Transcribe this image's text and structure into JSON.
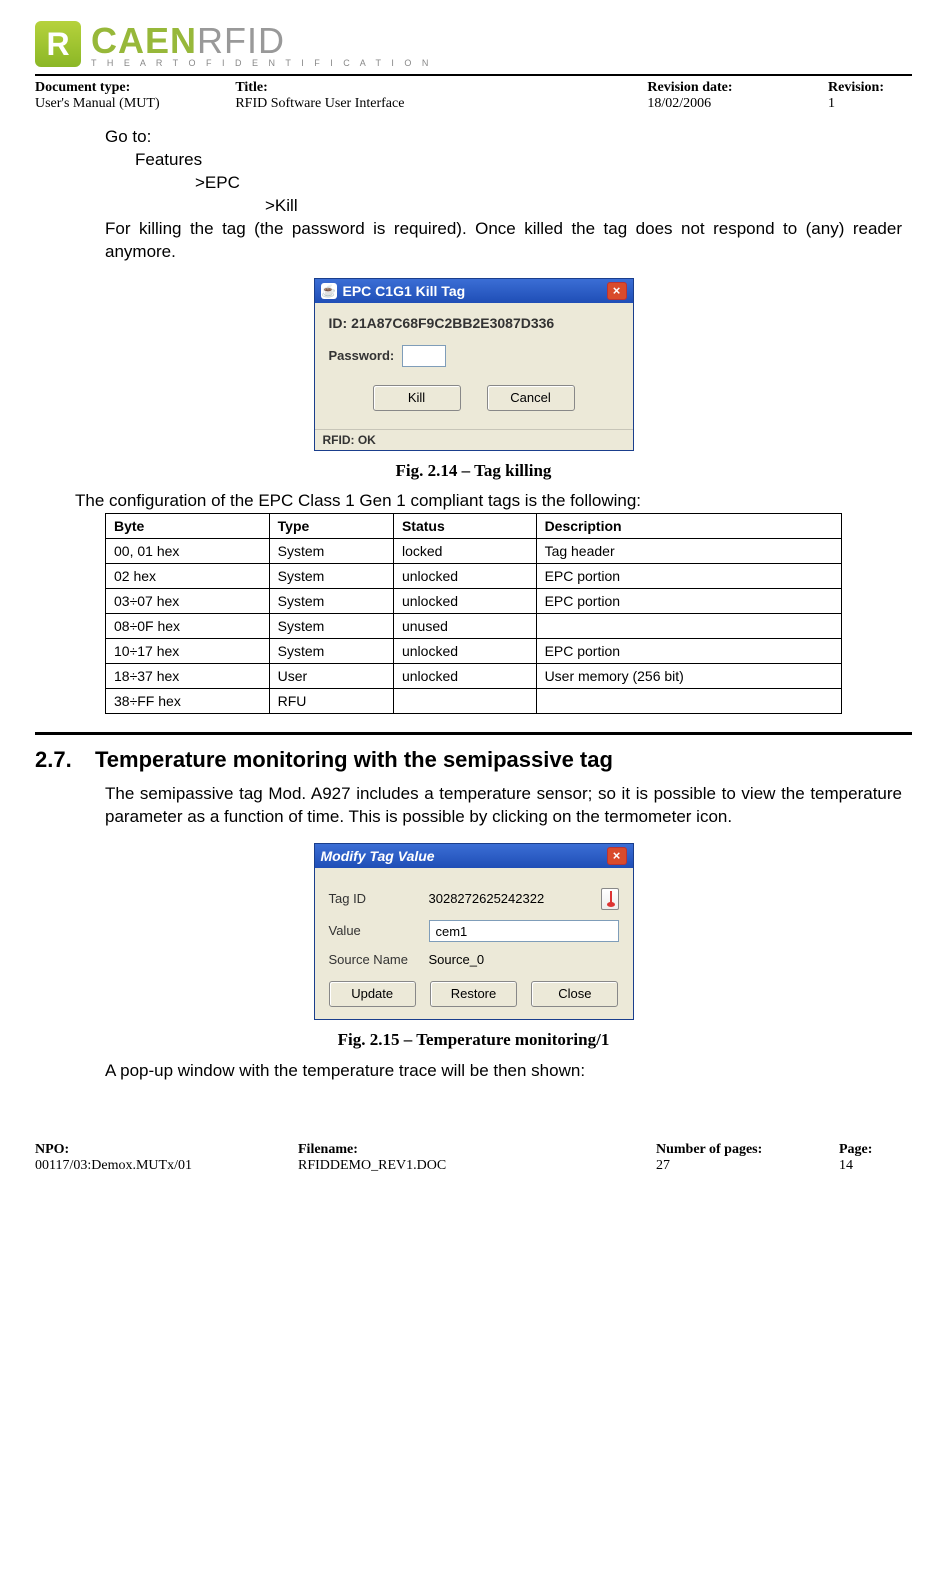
{
  "logo": {
    "badge": "R",
    "text1": "CAEN",
    "text2": "RFID",
    "sub": "T H E   A R T   O F   I D E N T I F I C A T I O N"
  },
  "header": {
    "doctype_lbl": "Document type:",
    "doctype_val": "User's Manual (MUT)",
    "title_lbl": "Title:",
    "title_val": "RFID Software User Interface",
    "revdate_lbl": "Revision date:",
    "revdate_val": "18/02/2006",
    "rev_lbl": "Revision:",
    "rev_val": "1"
  },
  "nav": {
    "goto": "Go to:",
    "features": "Features",
    "epc": ">EPC",
    "kill": ">Kill"
  },
  "para_kill": "For killing the tag (the password is required). Once killed the tag does not respond to (any) reader anymore.",
  "dlg1": {
    "title": "EPC C1G1 Kill Tag",
    "id_label": "ID:",
    "id_val": "21A87C68F9C2BB2E3087D336",
    "pw_label": "Password:",
    "btn_kill": "Kill",
    "btn_cancel": "Cancel",
    "status": "RFID: OK"
  },
  "fig1": "Fig. 2.14 – Tag killing",
  "table_intro": "The configuration of the EPC Class 1 Gen 1 compliant tags is the following:",
  "table": {
    "headers": [
      "Byte",
      "Type",
      "Status",
      "Description"
    ],
    "rows": [
      [
        "00, 01 hex",
        "System",
        "locked",
        "Tag header"
      ],
      [
        "02 hex",
        "System",
        "unlocked",
        "EPC portion"
      ],
      [
        "03÷07 hex",
        "System",
        "unlocked",
        "EPC portion"
      ],
      [
        "08÷0F hex",
        "System",
        "unused",
        ""
      ],
      [
        "10÷17 hex",
        "System",
        "unlocked",
        "EPC portion"
      ],
      [
        "18÷37 hex",
        "User",
        "unlocked",
        "User memory (256 bit)"
      ],
      [
        "38÷FF hex",
        "RFU",
        "",
        ""
      ]
    ]
  },
  "sec27": {
    "num": "2.7.",
    "title": "Temperature monitoring with the semipassive tag"
  },
  "para_temp": "The semipassive tag Mod. A927 includes a temperature sensor; so it is possible to view the temperature parameter as a function of time. This is possible by clicking on the termometer icon.",
  "dlg2": {
    "title": "Modify Tag Value",
    "tagid_lbl": "Tag ID",
    "tagid_val": "3028272625242322",
    "value_lbl": "Value",
    "value_val": "cem1",
    "src_lbl": "Source Name",
    "src_val": "Source_0",
    "btn_update": "Update",
    "btn_restore": "Restore",
    "btn_close": "Close"
  },
  "fig2": "Fig. 2.15 – Temperature monitoring/1",
  "para_popup": "A pop-up window with the temperature trace will be then shown:",
  "footer": {
    "npo_lbl": "NPO:",
    "npo_val": "00117/03:Demox.MUTx/01",
    "file_lbl": "Filename:",
    "file_val": "RFIDDEMO_REV1.DOC",
    "np_lbl": "Number of pages:",
    "np_val": "27",
    "page_lbl": "Page:",
    "page_val": "14"
  }
}
